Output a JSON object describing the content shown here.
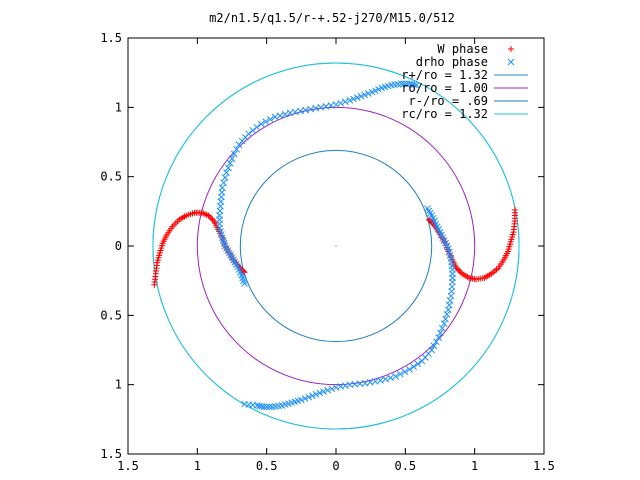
{
  "chart_data": {
    "type": "scatter",
    "title": "m2/n1.5/q1.5/r-+.52-j270/M15.0/512",
    "xlabel": "",
    "ylabel": "",
    "xlim": [
      -1.5,
      1.5
    ],
    "ylim": [
      -1.5,
      1.5
    ],
    "x_ticks": [
      {
        "value": -1.5,
        "label": "1.5"
      },
      {
        "value": -1.0,
        "label": "1"
      },
      {
        "value": -0.5,
        "label": "0.5"
      },
      {
        "value": 0.0,
        "label": "0"
      },
      {
        "value": 0.5,
        "label": "0.5"
      },
      {
        "value": 1.0,
        "label": "1"
      },
      {
        "value": 1.5,
        "label": "1.5"
      }
    ],
    "y_ticks": [
      {
        "value": 1.5,
        "label": "1.5"
      },
      {
        "value": 1.0,
        "label": "1"
      },
      {
        "value": 0.5,
        "label": "0.5"
      },
      {
        "value": 0.0,
        "label": "0"
      },
      {
        "value": -0.5,
        "label": "0.5"
      },
      {
        "value": -1.0,
        "label": "1"
      },
      {
        "value": -1.5,
        "label": "1.5"
      }
    ],
    "grid": false,
    "legend_position": "top-right",
    "series": [
      {
        "name": "W phase",
        "marker": "plus",
        "color": "#ff0000",
        "arms": [
          [
            [
              -1.31,
              -0.28
            ],
            [
              -1.3,
              -0.2
            ],
            [
              -1.29,
              -0.12
            ],
            [
              -1.27,
              -0.05
            ],
            [
              -1.25,
              0.02
            ],
            [
              -1.22,
              0.08
            ],
            [
              -1.18,
              0.14
            ],
            [
              -1.13,
              0.19
            ],
            [
              -1.08,
              0.22
            ],
            [
              -1.02,
              0.24
            ],
            [
              -0.97,
              0.24
            ],
            [
              -0.92,
              0.22
            ],
            [
              -0.88,
              0.18
            ],
            [
              -0.85,
              0.12
            ],
            [
              -0.82,
              0.06
            ],
            [
              -0.8,
              0.0
            ],
            [
              -0.77,
              -0.05
            ],
            [
              -0.74,
              -0.1
            ],
            [
              -0.71,
              -0.14
            ],
            [
              -0.68,
              -0.17
            ],
            [
              -0.66,
              -0.19
            ]
          ],
          [
            [
              1.29,
              0.26
            ],
            [
              1.29,
              0.18
            ],
            [
              1.28,
              0.1
            ],
            [
              1.26,
              0.03
            ],
            [
              1.24,
              -0.04
            ],
            [
              1.21,
              -0.1
            ],
            [
              1.17,
              -0.16
            ],
            [
              1.12,
              -0.2
            ],
            [
              1.07,
              -0.23
            ],
            [
              1.01,
              -0.24
            ],
            [
              0.96,
              -0.23
            ],
            [
              0.91,
              -0.2
            ],
            [
              0.87,
              -0.16
            ],
            [
              0.84,
              -0.1
            ],
            [
              0.81,
              -0.04
            ],
            [
              0.79,
              0.02
            ],
            [
              0.76,
              0.07
            ],
            [
              0.73,
              0.12
            ],
            [
              0.7,
              0.16
            ],
            [
              0.67,
              0.19
            ]
          ]
        ]
      },
      {
        "name": "drho phase",
        "marker": "cross",
        "color": "#1e90ff",
        "arms": [
          [
            [
              -0.66,
              -0.27
            ],
            [
              -0.68,
              -0.21
            ],
            [
              -0.71,
              -0.15
            ],
            [
              -0.74,
              -0.1
            ],
            [
              -0.77,
              -0.05
            ],
            [
              -0.8,
              0.0
            ],
            [
              -0.82,
              0.06
            ],
            [
              -0.84,
              0.13
            ],
            [
              -0.84,
              0.22
            ],
            [
              -0.83,
              0.32
            ],
            [
              -0.82,
              0.42
            ],
            [
              -0.79,
              0.53
            ],
            [
              -0.75,
              0.63
            ],
            [
              -0.7,
              0.73
            ],
            [
              -0.63,
              0.81
            ],
            [
              -0.54,
              0.88
            ],
            [
              -0.44,
              0.93
            ],
            [
              -0.33,
              0.96
            ],
            [
              -0.22,
              0.98
            ],
            [
              -0.11,
              1.0
            ],
            [
              0.0,
              1.02
            ],
            [
              0.1,
              1.05
            ],
            [
              0.18,
              1.08
            ],
            [
              0.26,
              1.11
            ],
            [
              0.33,
              1.14
            ],
            [
              0.4,
              1.16
            ],
            [
              0.47,
              1.17
            ],
            [
              0.53,
              1.17
            ],
            [
              0.58,
              1.16
            ]
          ],
          [
            [
              0.66,
              0.27
            ],
            [
              0.69,
              0.22
            ],
            [
              0.72,
              0.16
            ],
            [
              0.75,
              0.1
            ],
            [
              0.78,
              0.04
            ],
            [
              0.81,
              -0.02
            ],
            [
              0.83,
              -0.09
            ],
            [
              0.84,
              -0.17
            ],
            [
              0.84,
              -0.26
            ],
            [
              0.83,
              -0.36
            ],
            [
              0.81,
              -0.46
            ],
            [
              0.78,
              -0.56
            ],
            [
              0.74,
              -0.66
            ],
            [
              0.69,
              -0.75
            ],
            [
              0.62,
              -0.83
            ],
            [
              0.53,
              -0.89
            ],
            [
              0.43,
              -0.94
            ],
            [
              0.32,
              -0.97
            ],
            [
              0.21,
              -0.99
            ],
            [
              0.1,
              -1.0
            ],
            [
              0.0,
              -1.02
            ],
            [
              -0.09,
              -1.05
            ],
            [
              -0.17,
              -1.08
            ],
            [
              -0.25,
              -1.11
            ],
            [
              -0.32,
              -1.13
            ],
            [
              -0.39,
              -1.15
            ],
            [
              -0.46,
              -1.16
            ],
            [
              -0.52,
              -1.16
            ],
            [
              -0.57,
              -1.15
            ],
            [
              -0.66,
              -1.14
            ]
          ]
        ]
      }
    ],
    "circles": [
      {
        "name": "r+/ro = 1.32",
        "radius": 1.32,
        "color": "#1e8bc3"
      },
      {
        "name": "ro/ro = 1.00",
        "radius": 1.0,
        "color": "#a020c0"
      },
      {
        "name": "r-/ro = .69",
        "radius": 0.69,
        "color": "#1f7fbf"
      },
      {
        "name": "rc/ro = 1.32",
        "radius": 1.32,
        "color": "#20c8e0"
      }
    ]
  }
}
